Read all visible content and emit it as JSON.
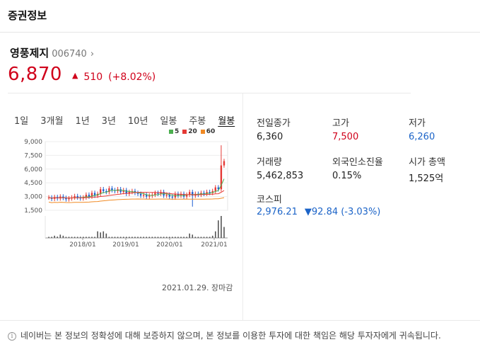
{
  "header": {
    "title": "증권정보"
  },
  "stock": {
    "name": "영풍제지",
    "code": "006740",
    "price": "6,870",
    "change": "510",
    "rate": "(+8.02%)"
  },
  "tabs": [
    "1일",
    "3개월",
    "1년",
    "3년",
    "10년",
    "일봉",
    "주봉",
    "월봉"
  ],
  "active_tab": "월봉",
  "legend": [
    {
      "label": "5",
      "color": "#4caf50"
    },
    {
      "label": "20",
      "color": "#e53935"
    },
    {
      "label": "60",
      "color": "#f08a24"
    }
  ],
  "chart_data": {
    "type": "candlestick",
    "yticks": [
      "9,000",
      "7,500",
      "6,000",
      "4,500",
      "3,000",
      "1,500"
    ],
    "ylim": [
      1500,
      9000
    ],
    "xticks": [
      "2018/01",
      "2019/01",
      "2020/01",
      "2021/01"
    ],
    "closes": [
      2900,
      2750,
      2950,
      2800,
      3000,
      2850,
      2700,
      2800,
      2900,
      3050,
      2900,
      2800,
      2900,
      3200,
      3000,
      3400,
      3100,
      3300,
      3800,
      3600,
      3500,
      3900,
      3700,
      3600,
      3800,
      3500,
      3700,
      3300,
      3500,
      3600,
      3400,
      3300,
      3100,
      3200,
      3000,
      3100,
      3200,
      3400,
      3300,
      3500,
      3100,
      3200,
      3000,
      2900,
      3300,
      3100,
      3300,
      3000,
      3200,
      3500,
      3100,
      3300,
      3200,
      3400,
      3300,
      3500,
      3400,
      3600,
      4000,
      3800,
      6400,
      6870
    ],
    "volume_peaks": [
      0.05,
      0.05,
      0.1,
      0.06,
      0.15,
      0.1,
      0.05,
      0.05,
      0.05,
      0.05,
      0.05,
      0.05,
      0.05,
      0.05,
      0.05,
      0.05,
      0.05,
      0.3,
      0.25,
      0.3,
      0.2,
      0.05,
      0.05,
      0.05,
      0.05,
      0.05,
      0.05,
      0.05,
      0.05,
      0.05,
      0.05,
      0.05,
      0.05,
      0.05,
      0.05,
      0.05,
      0.05,
      0.05,
      0.05,
      0.05,
      0.05,
      0.05,
      0.05,
      0.05,
      0.05,
      0.05,
      0.05,
      0.05,
      0.05,
      0.2,
      0.15,
      0.05,
      0.05,
      0.05,
      0.05,
      0.05,
      0.05,
      0.1,
      0.3,
      0.8,
      1.0,
      0.5
    ]
  },
  "chart_note": "2021.01.29. 장마감",
  "stats": {
    "prev_close_label": "전일종가",
    "prev_close": "6,360",
    "high_label": "고가",
    "high": "7,500",
    "low_label": "저가",
    "low": "6,260",
    "volume_label": "거래량",
    "volume": "5,462,853",
    "foreign_label": "외국인소진율",
    "foreign": "0.15%",
    "mcap_label": "시가 총액",
    "mcap": "1,525억"
  },
  "kospi": {
    "label": "코스피",
    "value": "2,976.21",
    "change": "▼92.84 (-3.03%)"
  },
  "footer": {
    "info_icon": "info-icon",
    "text": "네이버는 본 정보의 정확성에 대해 보증하지 않으며, 본 정보를 이용한 투자에 대한 책임은 해당 투자자에게 귀속됩니다."
  }
}
